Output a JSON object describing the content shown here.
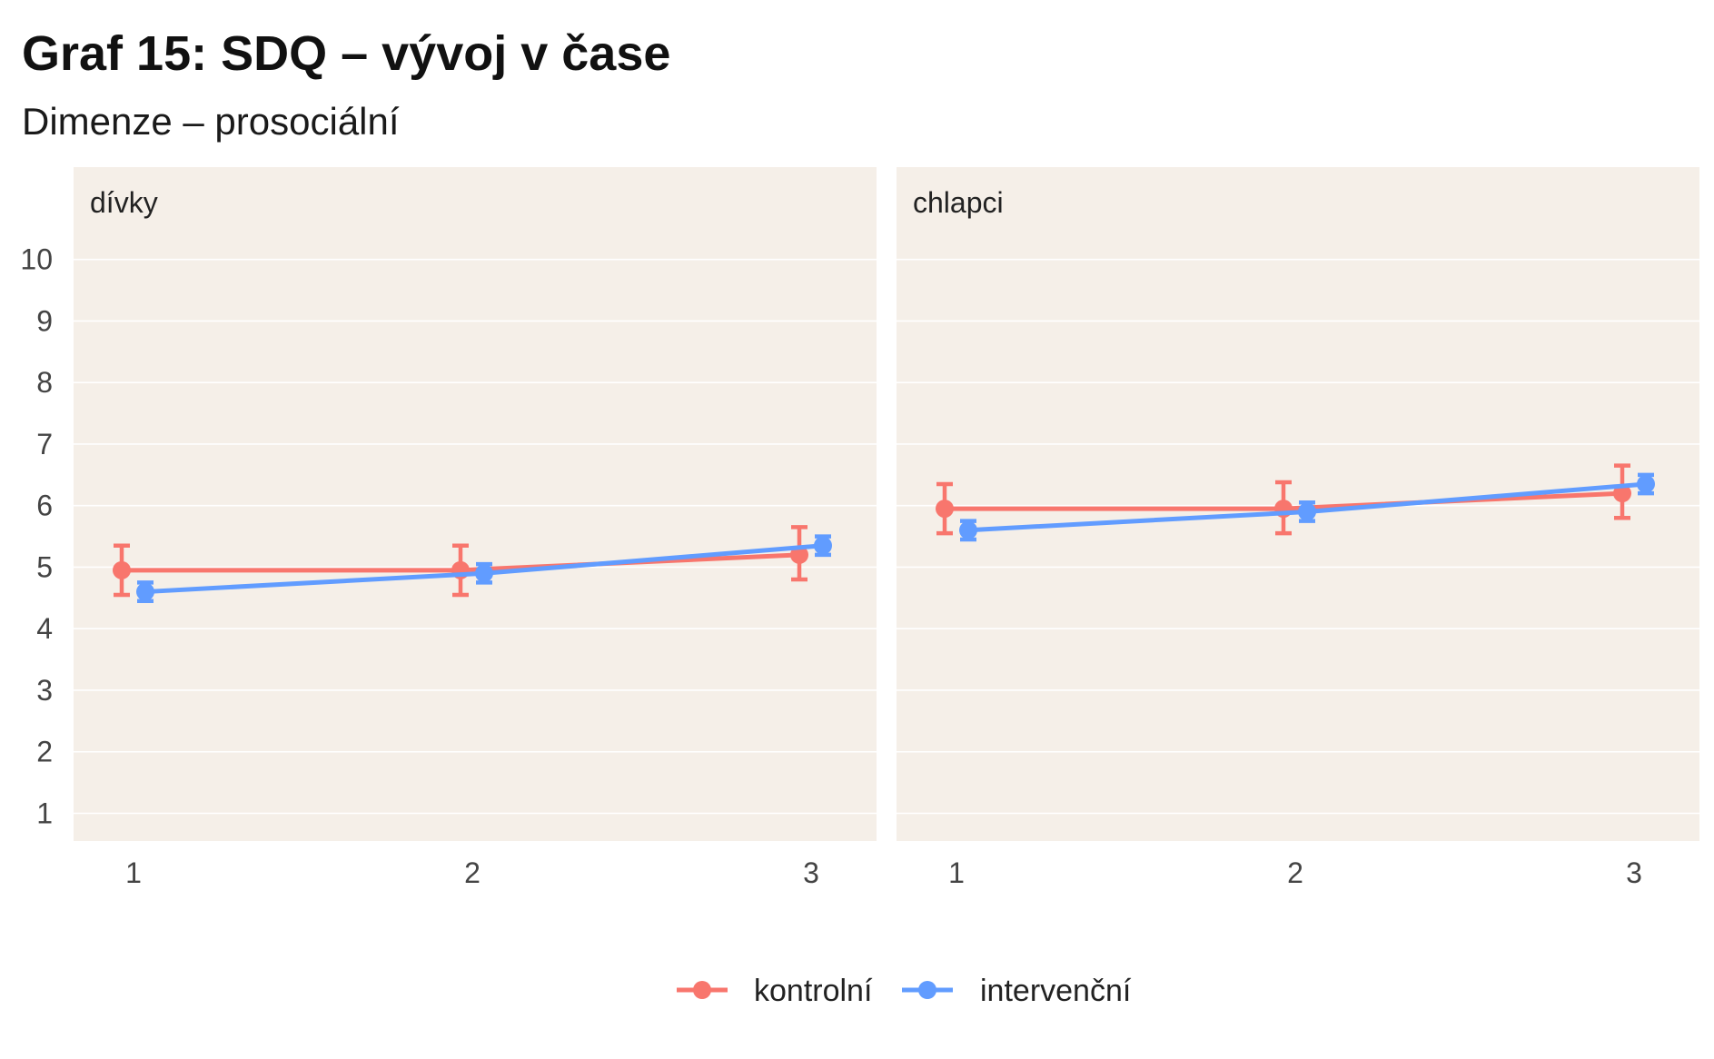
{
  "title": "Graf 15: SDQ – vývoj v čase",
  "subtitle": "Dimenze – prosociální",
  "chart_data": {
    "type": "line",
    "error_bars": true,
    "x_ticks": [
      "1",
      "2",
      "3"
    ],
    "x": [
      1,
      2,
      3
    ],
    "y_ticks": [
      1,
      2,
      3,
      4,
      5,
      6,
      7,
      8,
      9,
      10
    ],
    "ylim": [
      0.55,
      11.5
    ],
    "legend_position": "bottom",
    "colors": {
      "kontrolni": "#F8766D",
      "intervencni": "#619CFF",
      "panel_bg": "#F5EFE8",
      "grid": "#FFFFFF"
    },
    "panels": [
      {
        "label": "dívky",
        "series": [
          {
            "name": "kontrolní",
            "key": "kontrolni",
            "values": [
              4.95,
              4.95,
              5.2
            ],
            "lower": [
              4.55,
              4.55,
              4.8
            ],
            "upper": [
              5.35,
              5.35,
              5.65
            ]
          },
          {
            "name": "intervenční",
            "key": "intervencni",
            "values": [
              4.6,
              4.9,
              5.35
            ],
            "lower": [
              4.45,
              4.75,
              5.2
            ],
            "upper": [
              4.75,
              5.05,
              5.5
            ]
          }
        ]
      },
      {
        "label": "chlapci",
        "series": [
          {
            "name": "kontrolní",
            "key": "kontrolni",
            "values": [
              5.95,
              5.95,
              6.2
            ],
            "lower": [
              5.55,
              5.55,
              5.8
            ],
            "upper": [
              6.35,
              6.38,
              6.65
            ]
          },
          {
            "name": "intervenční",
            "key": "intervencni",
            "values": [
              5.6,
              5.9,
              6.35
            ],
            "lower": [
              5.45,
              5.75,
              6.2
            ],
            "upper": [
              5.75,
              6.05,
              6.5
            ]
          }
        ]
      }
    ],
    "legend": [
      {
        "label": "kontrolní",
        "key": "kontrolni"
      },
      {
        "label": "intervenční",
        "key": "intervencni"
      }
    ]
  }
}
